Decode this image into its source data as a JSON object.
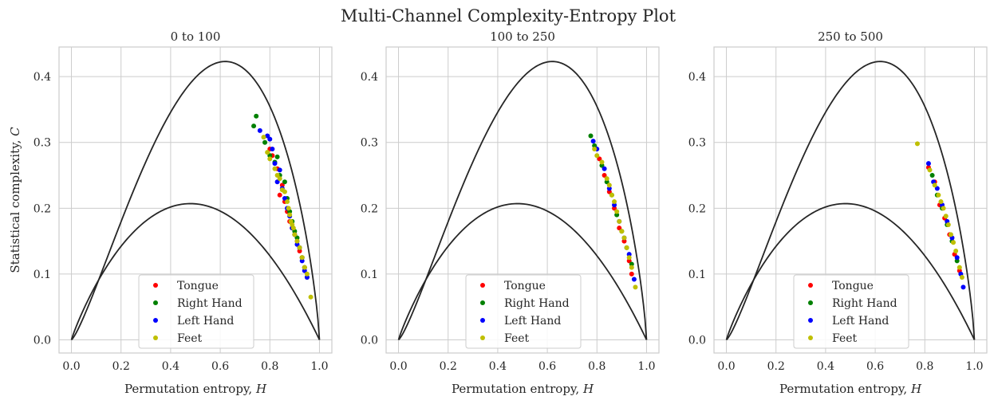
{
  "figure": {
    "suptitle": "Multi-Channel Complexity-Entropy Plot",
    "xlabel": "Permutation entropy, H",
    "ylabel": "Statistical complexity, C",
    "series_colors": {
      "Tongue": "#ff0000",
      "Right Hand": "#008000",
      "Left Hand": "#0000ff",
      "Feet": "#bfbf00"
    },
    "boundary_color": "#262626",
    "grid_color": "#cccccc",
    "legend_position": "lower center"
  },
  "chart_data": [
    {
      "type": "scatter",
      "title": "0 to 100",
      "xlabel": "Permutation entropy, H",
      "ylabel": "Statistical complexity, C",
      "xlim": [
        -0.05,
        1.05
      ],
      "ylim": [
        -0.02,
        0.445
      ],
      "xticks": [
        "0.0",
        "0.2",
        "0.4",
        "0.6",
        "0.8",
        "1.0"
      ],
      "yticks": [
        "0.0",
        "0.1",
        "0.2",
        "0.3",
        "0.4"
      ],
      "grid": true,
      "legend": "lower center",
      "series": [
        {
          "name": "Tongue",
          "color": "#ff0000",
          "points": [
            [
              0.8,
              0.29
            ],
            [
              0.81,
              0.28
            ],
            [
              0.83,
              0.26
            ],
            [
              0.84,
              0.22
            ],
            [
              0.85,
              0.235
            ],
            [
              0.86,
              0.21
            ],
            [
              0.87,
              0.195
            ],
            [
              0.88,
              0.18
            ],
            [
              0.89,
              0.17
            ],
            [
              0.9,
              0.16
            ],
            [
              0.91,
              0.15
            ],
            [
              0.92,
              0.135
            ],
            [
              0.93,
              0.125
            ],
            [
              0.94,
              0.11
            ]
          ]
        },
        {
          "name": "Right Hand",
          "color": "#008000",
          "points": [
            [
              0.735,
              0.325
            ],
            [
              0.745,
              0.34
            ],
            [
              0.78,
              0.3
            ],
            [
              0.8,
              0.28
            ],
            [
              0.82,
              0.27
            ],
            [
              0.83,
              0.278
            ],
            [
              0.84,
              0.25
            ],
            [
              0.86,
              0.24
            ],
            [
              0.87,
              0.215
            ],
            [
              0.88,
              0.195
            ],
            [
              0.89,
              0.18
            ],
            [
              0.9,
              0.165
            ],
            [
              0.91,
              0.155
            ],
            [
              0.92,
              0.14
            ],
            [
              0.93,
              0.125
            ],
            [
              0.94,
              0.11
            ],
            [
              0.95,
              0.095
            ]
          ]
        },
        {
          "name": "Left Hand",
          "color": "#0000ff",
          "points": [
            [
              0.76,
              0.318
            ],
            [
              0.79,
              0.31
            ],
            [
              0.8,
              0.305
            ],
            [
              0.81,
              0.29
            ],
            [
              0.82,
              0.268
            ],
            [
              0.83,
              0.24
            ],
            [
              0.84,
              0.258
            ],
            [
              0.85,
              0.23
            ],
            [
              0.86,
              0.215
            ],
            [
              0.87,
              0.2
            ],
            [
              0.88,
              0.188
            ],
            [
              0.89,
              0.17
            ],
            [
              0.9,
              0.16
            ],
            [
              0.91,
              0.145
            ],
            [
              0.92,
              0.14
            ],
            [
              0.93,
              0.12
            ],
            [
              0.94,
              0.105
            ],
            [
              0.95,
              0.095
            ]
          ]
        },
        {
          "name": "Feet",
          "color": "#bfbf00",
          "points": [
            [
              0.775,
              0.308
            ],
            [
              0.79,
              0.285
            ],
            [
              0.8,
              0.275
            ],
            [
              0.82,
              0.26
            ],
            [
              0.83,
              0.25
            ],
            [
              0.84,
              0.245
            ],
            [
              0.85,
              0.228
            ],
            [
              0.86,
              0.225
            ],
            [
              0.87,
              0.21
            ],
            [
              0.875,
              0.2
            ],
            [
              0.88,
              0.19
            ],
            [
              0.885,
              0.18
            ],
            [
              0.89,
              0.175
            ],
            [
              0.895,
              0.17
            ],
            [
              0.9,
              0.16
            ],
            [
              0.91,
              0.15
            ],
            [
              0.92,
              0.14
            ],
            [
              0.93,
              0.125
            ],
            [
              0.94,
              0.11
            ],
            [
              0.95,
              0.1
            ],
            [
              0.965,
              0.065
            ]
          ]
        }
      ]
    },
    {
      "type": "scatter",
      "title": "100 to 250",
      "xlabel": "Permutation entropy, H",
      "ylabel": "",
      "xlim": [
        -0.05,
        1.05
      ],
      "ylim": [
        -0.02,
        0.445
      ],
      "xticks": [
        "0.0",
        "0.2",
        "0.4",
        "0.6",
        "0.8",
        "1.0"
      ],
      "yticks": [
        "0.0",
        "0.1",
        "0.2",
        "0.3",
        "0.4"
      ],
      "grid": true,
      "legend": "lower center",
      "series": [
        {
          "name": "Tongue",
          "color": "#ff0000",
          "points": [
            [
              0.81,
              0.275
            ],
            [
              0.83,
              0.25
            ],
            [
              0.85,
              0.225
            ],
            [
              0.87,
              0.2
            ],
            [
              0.89,
              0.17
            ],
            [
              0.91,
              0.15
            ],
            [
              0.93,
              0.12
            ],
            [
              0.94,
              0.1
            ]
          ]
        },
        {
          "name": "Right Hand",
          "color": "#008000",
          "points": [
            [
              0.775,
              0.31
            ],
            [
              0.79,
              0.295
            ],
            [
              0.82,
              0.265
            ],
            [
              0.84,
              0.24
            ],
            [
              0.86,
              0.22
            ],
            [
              0.88,
              0.19
            ],
            [
              0.9,
              0.165
            ],
            [
              0.92,
              0.14
            ],
            [
              0.94,
              0.115
            ]
          ]
        },
        {
          "name": "Left Hand",
          "color": "#0000ff",
          "points": [
            [
              0.785,
              0.302
            ],
            [
              0.8,
              0.29
            ],
            [
              0.83,
              0.26
            ],
            [
              0.85,
              0.23
            ],
            [
              0.87,
              0.205
            ],
            [
              0.89,
              0.18
            ],
            [
              0.91,
              0.155
            ],
            [
              0.93,
              0.13
            ],
            [
              0.95,
              0.092
            ]
          ]
        },
        {
          "name": "Feet",
          "color": "#bfbf00",
          "points": [
            [
              0.79,
              0.29
            ],
            [
              0.8,
              0.28
            ],
            [
              0.82,
              0.27
            ],
            [
              0.84,
              0.245
            ],
            [
              0.85,
              0.235
            ],
            [
              0.86,
              0.22
            ],
            [
              0.87,
              0.21
            ],
            [
              0.88,
              0.195
            ],
            [
              0.89,
              0.18
            ],
            [
              0.9,
              0.165
            ],
            [
              0.91,
              0.155
            ],
            [
              0.92,
              0.14
            ],
            [
              0.93,
              0.125
            ],
            [
              0.94,
              0.11
            ],
            [
              0.955,
              0.08
            ]
          ]
        }
      ]
    },
    {
      "type": "scatter",
      "title": "250 to 500",
      "xlabel": "Permutation entropy, H",
      "ylabel": "",
      "xlim": [
        -0.05,
        1.05
      ],
      "ylim": [
        -0.02,
        0.445
      ],
      "xticks": [
        "0.0",
        "0.2",
        "0.4",
        "0.6",
        "0.8",
        "1.0"
      ],
      "yticks": [
        "0.0",
        "0.1",
        "0.2",
        "0.3",
        "0.4"
      ],
      "grid": true,
      "legend": "lower center",
      "series": [
        {
          "name": "Tongue",
          "color": "#ff0000",
          "points": [
            [
              0.815,
              0.262
            ],
            [
              0.84,
              0.24
            ],
            [
              0.86,
              0.205
            ],
            [
              0.88,
              0.185
            ],
            [
              0.9,
              0.16
            ],
            [
              0.92,
              0.13
            ],
            [
              0.94,
              0.105
            ]
          ]
        },
        {
          "name": "Right Hand",
          "color": "#008000",
          "points": [
            [
              0.83,
              0.25
            ],
            [
              0.85,
              0.22
            ],
            [
              0.87,
              0.2
            ],
            [
              0.89,
              0.175
            ],
            [
              0.91,
              0.15
            ],
            [
              0.93,
              0.12
            ]
          ]
        },
        {
          "name": "Left Hand",
          "color": "#0000ff",
          "points": [
            [
              0.815,
              0.268
            ],
            [
              0.835,
              0.24
            ],
            [
              0.85,
              0.23
            ],
            [
              0.87,
              0.205
            ],
            [
              0.89,
              0.18
            ],
            [
              0.91,
              0.155
            ],
            [
              0.93,
              0.125
            ],
            [
              0.945,
              0.1
            ],
            [
              0.955,
              0.08
            ]
          ]
        },
        {
          "name": "Feet",
          "color": "#bfbf00",
          "points": [
            [
              0.77,
              0.298
            ],
            [
              0.82,
              0.258
            ],
            [
              0.84,
              0.235
            ],
            [
              0.855,
              0.22
            ],
            [
              0.865,
              0.21
            ],
            [
              0.875,
              0.2
            ],
            [
              0.885,
              0.188
            ],
            [
              0.895,
              0.175
            ],
            [
              0.905,
              0.16
            ],
            [
              0.915,
              0.148
            ],
            [
              0.925,
              0.135
            ],
            [
              0.94,
              0.11
            ],
            [
              0.95,
              0.095
            ]
          ]
        }
      ]
    }
  ]
}
